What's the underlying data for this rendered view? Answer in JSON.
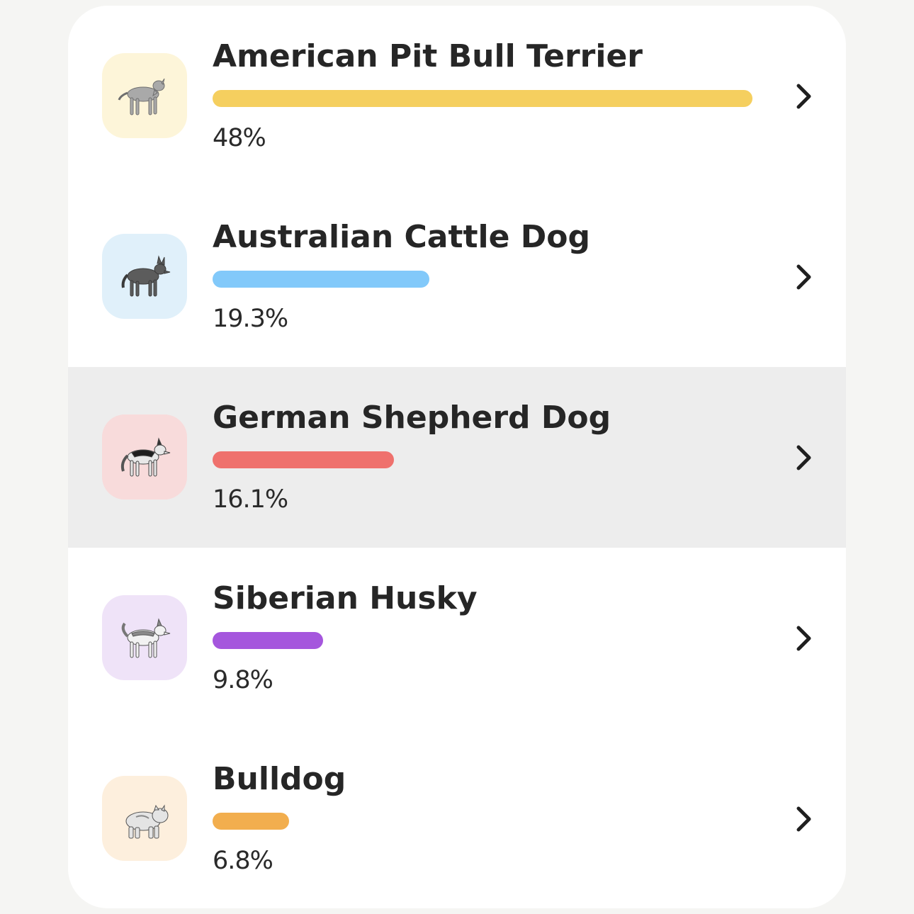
{
  "breeds": [
    {
      "name": "American Pit Bull Terrier",
      "percent_label": "48%",
      "value": 48,
      "bar_color": "#f5cf5f",
      "thumb_color": "#fdf5d9",
      "icon": "pit-bull-icon",
      "selected": false
    },
    {
      "name": "Australian Cattle Dog",
      "percent_label": "19.3%",
      "value": 19.3,
      "bar_color": "#82c9fa",
      "thumb_color": "#e0f0fa",
      "icon": "cattle-dog-icon",
      "selected": false
    },
    {
      "name": "German Shepherd Dog",
      "percent_label": "16.1%",
      "value": 16.1,
      "bar_color": "#ef716d",
      "thumb_color": "#f8dbdb",
      "icon": "german-shepherd-icon",
      "selected": true
    },
    {
      "name": "Siberian Husky",
      "percent_label": "9.8%",
      "value": 9.8,
      "bar_color": "#a556dd",
      "thumb_color": "#efe3f8",
      "icon": "husky-icon",
      "selected": false
    },
    {
      "name": "Bulldog",
      "percent_label": "6.8%",
      "value": 6.8,
      "bar_color": "#f2ae4e",
      "thumb_color": "#fdefdd",
      "icon": "bulldog-icon",
      "selected": false
    }
  ]
}
